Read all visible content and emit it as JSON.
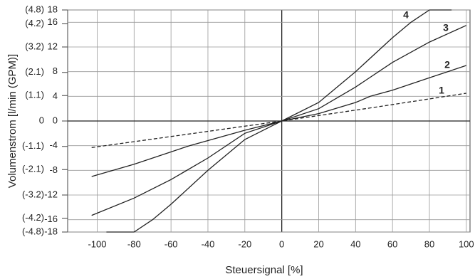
{
  "chart_data": {
    "type": "line",
    "xlabel": "Steuersignal [%]",
    "ylabel": "Volumenstrom [l/min (GPM)]",
    "xlim": [
      -116,
      102
    ],
    "ylim": [
      -18,
      18
    ],
    "y2lim": [
      -4.8,
      4.8
    ],
    "xticks": [
      -100,
      -80,
      -60,
      -40,
      -20,
      0,
      20,
      40,
      60,
      80,
      100
    ],
    "yticks": [
      18,
      16,
      12,
      8,
      4,
      0,
      -4,
      -8,
      -12,
      -16,
      -18
    ],
    "y2ticks": [
      {
        "value": 4.8,
        "label": "(4.8)"
      },
      {
        "value": 4.2,
        "label": "(4.2)"
      },
      {
        "value": 3.2,
        "label": "(3.2)"
      },
      {
        "value": 2.1,
        "label": "(2.1)"
      },
      {
        "value": 1.1,
        "label": "(1.1)"
      },
      0,
      {
        "value": -1.1,
        "label": "(-1.1)"
      },
      {
        "value": -2.1,
        "label": "(-2.1)"
      },
      {
        "value": -3.2,
        "label": "(-3.2)"
      },
      {
        "value": -4.2,
        "label": "(-4.2)"
      },
      {
        "value": -4.8,
        "label": "(-4.8)"
      }
    ],
    "grid": true,
    "series": [
      {
        "name": "1",
        "color": "#222222",
        "dashed": true,
        "x": [
          -103,
          -50,
          0,
          50,
          100
        ],
        "values": [
          -4.3,
          -2.1,
          0,
          2.2,
          4.5
        ]
      },
      {
        "name": "2",
        "color": "#222222",
        "x": [
          -103,
          -80,
          -50,
          -20,
          0,
          20,
          40,
          48,
          60,
          80,
          100
        ],
        "values": [
          -9,
          -7,
          -4,
          -1.5,
          0,
          1.2,
          3,
          4,
          5,
          7,
          9
        ]
      },
      {
        "name": "3",
        "color": "#222222",
        "x": [
          -103,
          -80,
          -60,
          -40,
          -20,
          0,
          20,
          40,
          60,
          80,
          100
        ],
        "values": [
          -15.3,
          -12.5,
          -9.5,
          -6,
          -2,
          0,
          2,
          5.5,
          9.5,
          12.8,
          15.5
        ]
      },
      {
        "name": "4",
        "color": "#222222",
        "x": [
          -95,
          -80,
          -70,
          -60,
          -40,
          -20,
          0,
          20,
          40,
          60,
          70,
          80,
          92
        ],
        "values": [
          -18,
          -18,
          -16,
          -13.5,
          -8,
          -3,
          0,
          3,
          8,
          13.5,
          16,
          18,
          18
        ]
      }
    ]
  }
}
